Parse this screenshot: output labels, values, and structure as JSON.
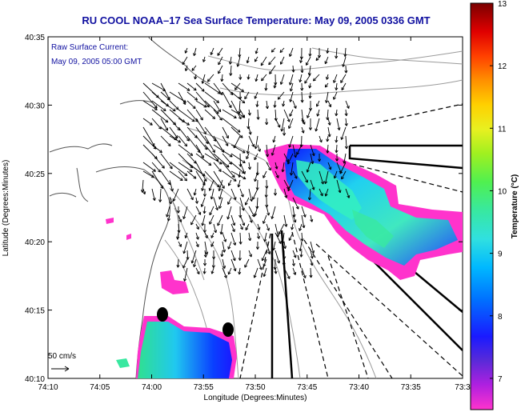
{
  "chart_data": {
    "type": "heatmap",
    "title": "RU COOL  NOAA–17  Sea Surface Temperature:  May 09, 2005 0336 GMT",
    "xlabel": "Longitude (Degrees:Minutes)",
    "ylabel": "Latitude (Degrees:Minutes)",
    "x_tick_labels": [
      "74:10",
      "74:05",
      "74:00",
      "73:55",
      "73:50",
      "73:45",
      "73:40",
      "73:35",
      "73:3"
    ],
    "y_tick_labels": [
      "40:35",
      "40:30",
      "40:25",
      "40:20",
      "40:15",
      "40:10"
    ],
    "xlim": [
      "74:10",
      "73:30"
    ],
    "ylim": [
      "40:10",
      "40:35"
    ],
    "colorbar": {
      "label": "Temperature (°C)",
      "tick_labels": [
        "13",
        "12",
        "11",
        "10",
        "9",
        "8",
        "7"
      ],
      "range": [
        6.5,
        13
      ],
      "colors": [
        "#ff33cc",
        "#b020e0",
        "#5a2ad8",
        "#1a1aff",
        "#0070ff",
        "#00b8ff",
        "#30e0e0",
        "#38e8a0",
        "#50f050",
        "#a0f020",
        "#e8f020",
        "#ffd000",
        "#ff9000",
        "#ff4000",
        "#e00000",
        "#b00000",
        "#7a0000"
      ]
    },
    "annotations": {
      "current_label": "Raw Surface Current:",
      "current_time": "May 09, 2005 05:00 GMT",
      "scale_label": "50 cm/s"
    },
    "grid": false,
    "legend": "colorbar-right"
  }
}
